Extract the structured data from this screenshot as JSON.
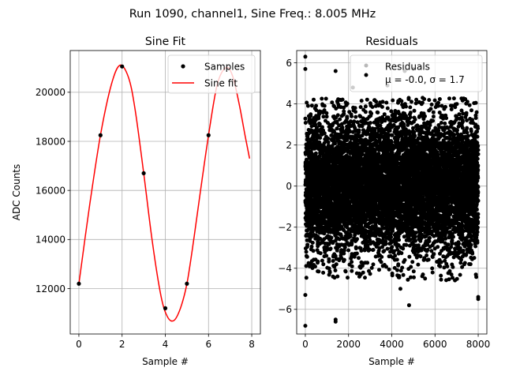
{
  "figure_title": "Run 1090, channel1, Sine Freq.: 8.005 MHz",
  "colors": {
    "samples": "#000000",
    "fit": "#ff0000",
    "residuals": "#000000",
    "grid": "#b0b0b0"
  },
  "chart_data": [
    {
      "type": "line",
      "title": "Sine Fit",
      "xlabel": "Sample #",
      "ylabel": "ADC Counts",
      "xlim": [
        -0.4,
        8.4
      ],
      "ylim": [
        10150,
        21700
      ],
      "xticks": [
        0,
        2,
        4,
        6,
        8
      ],
      "xtick_labels": [
        "0",
        "2",
        "4",
        "6",
        "8"
      ],
      "yticks": [
        12000,
        14000,
        16000,
        18000,
        20000
      ],
      "ytick_labels": [
        "12000",
        "14000",
        "16000",
        "18000",
        "20000"
      ],
      "grid": true,
      "legend_position": "upper right",
      "series": [
        {
          "name": "Samples",
          "style": "markers",
          "x": [
            0,
            1,
            2,
            3,
            4,
            5,
            6
          ],
          "y": [
            12200,
            18250,
            21050,
            16700,
            11200,
            12200,
            18250
          ]
        },
        {
          "name": "Sine fit",
          "style": "line",
          "x": [
            0,
            0.5,
            1,
            1.5,
            1.9,
            2.3,
            2.6,
            3,
            3.4,
            3.8,
            4.1,
            4.4,
            4.7,
            5,
            5.3,
            5.6,
            6,
            6.4,
            6.8,
            7.1,
            7.4,
            7.7,
            7.9
          ],
          "y": [
            12200,
            15400,
            18250,
            20300,
            21100,
            20600,
            19300,
            16700,
            13900,
            11700,
            10850,
            10700,
            11200,
            12200,
            13900,
            15800,
            18250,
            20300,
            21000,
            20700,
            19600,
            18200,
            17300
          ]
        }
      ]
    },
    {
      "type": "scatter",
      "title": "Residuals",
      "xlabel": "Sample #",
      "ylabel": "",
      "xlim": [
        -400,
        8400
      ],
      "ylim": [
        -7.2,
        6.6
      ],
      "xticks": [
        0,
        2000,
        4000,
        6000,
        8000
      ],
      "xtick_labels": [
        "0",
        "2000",
        "4000",
        "6000",
        "8000"
      ],
      "yticks": [
        -6,
        -4,
        -2,
        0,
        2,
        4,
        6
      ],
      "ytick_labels": [
        "−6",
        "−4",
        "−2",
        "0",
        "2",
        "4",
        "6"
      ],
      "grid": true,
      "legend_position": "upper right",
      "legend_lines": [
        "Residuals",
        "μ = -0.0, σ = 1.7"
      ],
      "series": [
        {
          "name": "Residuals",
          "mean": 0.0,
          "std": 1.7,
          "n_points": 8000,
          "x_range": [
            0,
            7999
          ],
          "outliers": [
            {
              "x": 0,
              "y": 6.3
            },
            {
              "x": 0,
              "y": 5.7
            },
            {
              "x": 0,
              "y": -6.8
            },
            {
              "x": 0,
              "y": -5.3
            },
            {
              "x": 1400,
              "y": 5.6
            },
            {
              "x": 1400,
              "y": -6.6
            },
            {
              "x": 1400,
              "y": -6.5
            },
            {
              "x": 4800,
              "y": -5.8
            },
            {
              "x": 4600,
              "y": 5.6
            },
            {
              "x": 5000,
              "y": 5.7
            },
            {
              "x": 8000,
              "y": -5.4
            },
            {
              "x": 8000,
              "y": -5.5
            },
            {
              "x": 4400,
              "y": -5.0
            },
            {
              "x": 2200,
              "y": 4.8
            },
            {
              "x": 3800,
              "y": 4.9
            }
          ]
        }
      ]
    }
  ]
}
